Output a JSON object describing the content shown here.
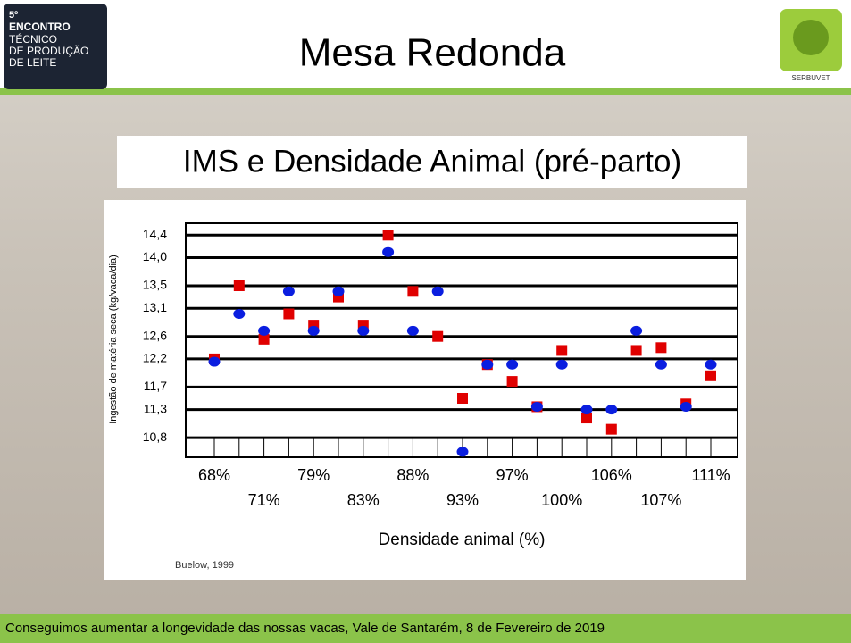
{
  "header": {
    "title": "Mesa Redonda",
    "event_logo": {
      "line1": "5º",
      "line2": "ENCONTRO",
      "line3": "TÉCNICO",
      "line4": "DE PRODUÇÃO",
      "line5": "DE LEITE"
    },
    "brand": "SERBUVET"
  },
  "chart_data": {
    "type": "scatter",
    "title": "IMS e Densidade Animal (pré-parto)",
    "x_label": "Densidade animal (%)",
    "y_label": "Ingestão de matéria seca (kg/vaca/dia)",
    "source": "Buelow, 1999",
    "categories": [
      "68%",
      null,
      "71%",
      null,
      "79%",
      null,
      "83%",
      null,
      "88%",
      null,
      "93%",
      null,
      "97%",
      null,
      "100%",
      null,
      "106%",
      null,
      "107%",
      null,
      "111%"
    ],
    "series": [
      {
        "color": "#e00000",
        "marker": "square",
        "values": [
          12.2,
          13.5,
          12.55,
          13.0,
          12.8,
          13.3,
          12.8,
          14.4,
          13.4,
          12.6,
          11.5,
          12.1,
          11.8,
          11.35,
          12.35,
          11.15,
          10.95,
          12.35,
          12.4,
          11.4,
          11.9
        ]
      },
      {
        "color": "#0a1ee0",
        "marker": "circle",
        "values": [
          12.15,
          13.0,
          12.7,
          13.4,
          12.7,
          13.4,
          12.7,
          14.1,
          12.7,
          13.4,
          10.55,
          12.1,
          12.1,
          11.35,
          12.1,
          11.3,
          11.3,
          12.7,
          12.1,
          11.35,
          12.1
        ]
      }
    ],
    "ylim": [
      10.5,
      14.5
    ],
    "yticks": [
      {
        "value": 14.4,
        "label": "14,4"
      },
      {
        "value": 14.0,
        "label": "14,0"
      },
      {
        "value": 13.5,
        "label": "13,5"
      },
      {
        "value": 13.1,
        "label": "13,1"
      },
      {
        "value": 12.6,
        "label": "12,6"
      },
      {
        "value": 12.2,
        "label": "12,2"
      },
      {
        "value": 11.7,
        "label": "11,7"
      },
      {
        "value": 11.3,
        "label": "11,3"
      },
      {
        "value": 10.8,
        "label": "10,8"
      }
    ],
    "grid": true
  },
  "footer": {
    "text": "Conseguimos aumentar a longevidade das nossas vacas, Vale de Santarém, 8 de Fevereiro de 2019"
  }
}
